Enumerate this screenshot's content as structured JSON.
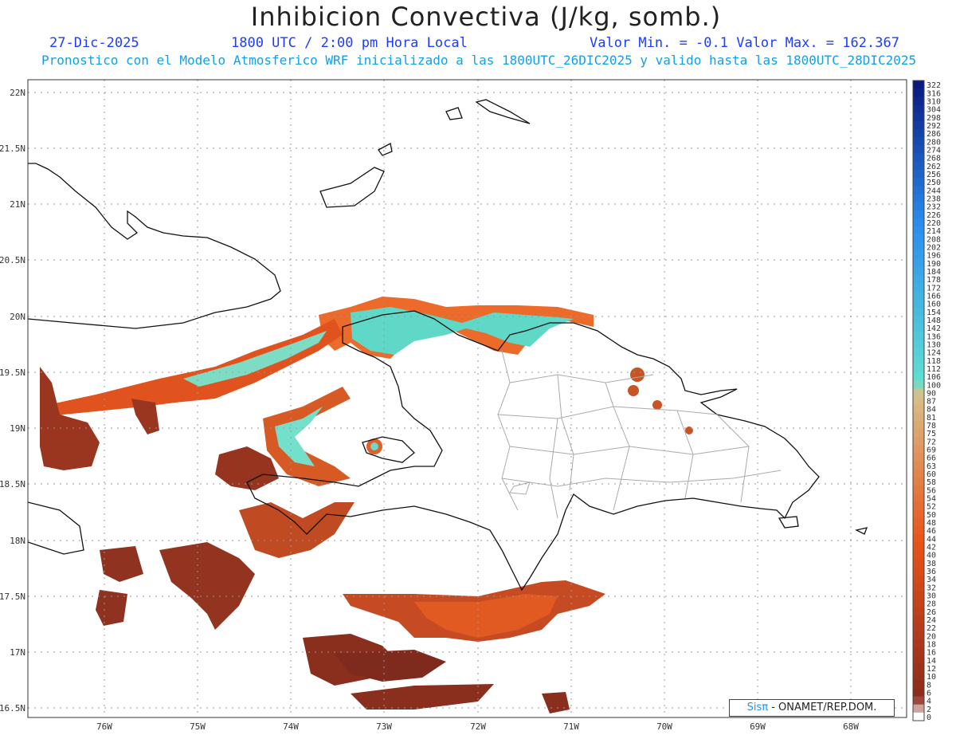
{
  "header": {
    "title": "Inhibicion Convectiva (J/kg, somb.)",
    "date": "27-Dic-2025",
    "time": "1800 UTC / 2:00 pm Hora Local",
    "minmax": "Valor Min. = -0.1  Valor Max. = 162.367",
    "subtitle": "Pronostico con el Modelo Atmosferico WRF inicializado a las 1800UTC_26DIC2025 y valido hasta las  1800UTC_28DIC2025"
  },
  "map": {
    "lat_labels": [
      "22N",
      "21.5N",
      "21N",
      "20.5N",
      "20N",
      "19.5N",
      "19N",
      "18.5N",
      "18N",
      "17.5N",
      "17N",
      "16.5N"
    ],
    "lon_labels": [
      "76W",
      "75W",
      "74W",
      "73W",
      "72W",
      "71W",
      "70W",
      "69W",
      "68W"
    ]
  },
  "colorbar": {
    "labels": [
      "322",
      "316",
      "310",
      "304",
      "298",
      "292",
      "286",
      "280",
      "274",
      "268",
      "262",
      "256",
      "250",
      "244",
      "238",
      "232",
      "226",
      "220",
      "214",
      "208",
      "202",
      "196",
      "190",
      "184",
      "178",
      "172",
      "166",
      "160",
      "154",
      "148",
      "142",
      "136",
      "130",
      "124",
      "118",
      "112",
      "106",
      "100",
      "90",
      "87",
      "84",
      "81",
      "78",
      "75",
      "72",
      "69",
      "66",
      "63",
      "60",
      "58",
      "56",
      "54",
      "52",
      "50",
      "48",
      "46",
      "44",
      "42",
      "40",
      "38",
      "36",
      "34",
      "32",
      "30",
      "28",
      "26",
      "24",
      "22",
      "20",
      "18",
      "16",
      "14",
      "12",
      "10",
      "8",
      "6",
      "4",
      "2",
      "0"
    ],
    "colors": {
      "low": "#8b2a1a",
      "mid": "#e8541a",
      "tan": "#d8c08a",
      "cyan": "#5fe0d0",
      "blue": "#2a8cf0",
      "dark": "#0a1a80"
    }
  },
  "credit": {
    "brand": "Sisπ",
    "text": "- ONAMET/REP.DOM."
  }
}
